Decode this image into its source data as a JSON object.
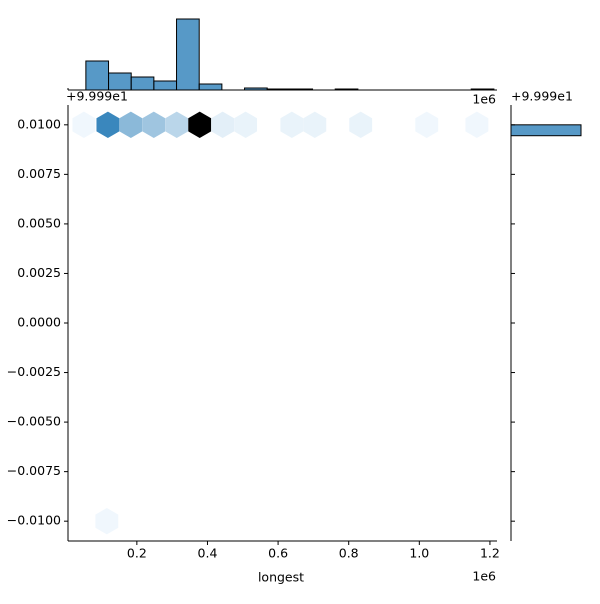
{
  "chart_data": {
    "type": "hexbin",
    "xlabel": "longest",
    "x_offset_label": "1e6",
    "y_offset_label": "+9.999e1",
    "color": "#1f77b4",
    "xlim": [
      0.005,
      1.22
    ],
    "ylim": [
      -0.011,
      0.011
    ],
    "xticks": [
      0.2,
      0.4,
      0.6,
      0.8,
      {
        "value": 1.0,
        "label": "1.0"
      },
      1.2
    ],
    "yticks": [
      {
        "value": -0.01,
        "label": "−0.0100"
      },
      {
        "value": -0.0075,
        "label": "−0.0075"
      },
      {
        "value": -0.005,
        "label": "−0.0050"
      },
      {
        "value": -0.0025,
        "label": "−0.0025"
      },
      {
        "value": 0,
        "label": "0.0000"
      },
      {
        "value": 0.0025,
        "label": "0.0025"
      },
      {
        "value": 0.005,
        "label": "0.0050"
      },
      {
        "value": 0.0075,
        "label": "0.0075"
      },
      {
        "value": 0.01,
        "label": "0.0100"
      }
    ],
    "hexes": {
      "x": [
        0.05,
        0.118,
        0.183,
        0.248,
        0.313,
        0.378,
        0.443,
        0.508,
        0.639,
        0.704,
        0.834,
        1.021,
        1.163,
        0.115
      ],
      "y": [
        0.01,
        0.01,
        0.01,
        0.01,
        0.01,
        0.01,
        0.01,
        0.01,
        0.01,
        0.01,
        0.01,
        0.01,
        0.01,
        -0.01
      ],
      "counts": [
        1,
        28,
        16,
        13,
        9,
        71,
        3,
        2,
        2,
        2,
        2,
        1,
        1,
        1
      ]
    },
    "x_hist": {
      "bins": [
        0.0556,
        0.1198,
        0.184,
        0.2482,
        0.3124,
        0.3766,
        0.4408,
        0.505,
        0.5692,
        0.6334,
        0.6976,
        0.7618,
        0.826,
        0.8902,
        0.9544,
        1.0186,
        1.0828,
        1.147,
        1.2112
      ],
      "counts": [
        29,
        17,
        13,
        9,
        71,
        6,
        0,
        2,
        1,
        1,
        0,
        1,
        0,
        0,
        0,
        0,
        0,
        1
      ]
    },
    "y_hist": {
      "bins": [
        0.00945,
        0.01
      ],
      "counts": [
        150
      ]
    }
  }
}
